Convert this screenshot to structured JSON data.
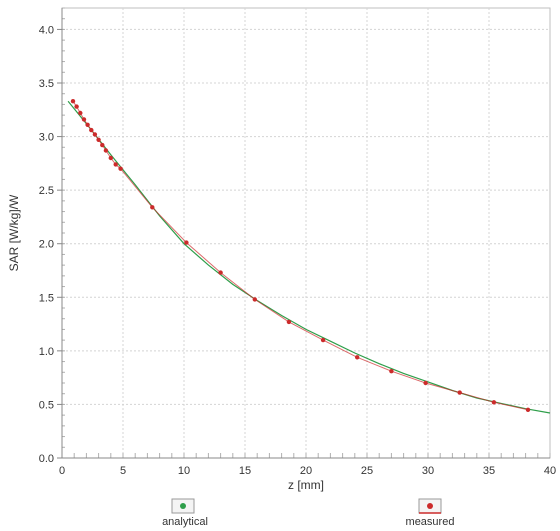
{
  "chart_data": {
    "type": "line",
    "title": "",
    "xlabel": "z [mm]",
    "ylabel": "SAR [W/kg]/W",
    "xlim": [
      0,
      40
    ],
    "ylim": [
      0,
      4.2
    ],
    "x_ticks": [
      "0",
      "5",
      "10",
      "15",
      "20",
      "25",
      "30",
      "35",
      "40"
    ],
    "y_ticks": [
      "0.0",
      "0.5",
      "1.0",
      "1.5",
      "2.0",
      "2.5",
      "3.0",
      "3.5",
      "4.0"
    ],
    "x_tick_values": [
      0,
      5,
      10,
      15,
      20,
      25,
      30,
      35,
      40
    ],
    "y_tick_values": [
      0,
      0.5,
      1.0,
      1.5,
      2.0,
      2.5,
      3.0,
      3.5,
      4.0
    ],
    "grid": true,
    "legend_position": "bottom",
    "series": [
      {
        "name": "analytical",
        "color": "#2e9e4a",
        "style": "line",
        "x": [
          0.5,
          2,
          4,
          6,
          8,
          10,
          12,
          14,
          16,
          18,
          20,
          22,
          24,
          26,
          28,
          30,
          32,
          34,
          36,
          38,
          40
        ],
        "y": [
          3.33,
          3.12,
          2.83,
          2.55,
          2.26,
          2.0,
          1.8,
          1.62,
          1.47,
          1.33,
          1.2,
          1.09,
          0.98,
          0.88,
          0.79,
          0.71,
          0.63,
          0.56,
          0.51,
          0.46,
          0.42
        ]
      },
      {
        "name": "measured",
        "color": "#cc2b2b",
        "style": "markers",
        "x": [
          0.9,
          1.2,
          1.5,
          1.8,
          2.1,
          2.4,
          2.7,
          3.0,
          3.3,
          3.6,
          4.0,
          4.4,
          4.8,
          7.4,
          10.2,
          13.0,
          15.8,
          18.6,
          21.4,
          24.2,
          27.0,
          29.8,
          32.6,
          35.4,
          38.2
        ],
        "y": [
          3.33,
          3.28,
          3.22,
          3.16,
          3.11,
          3.06,
          3.02,
          2.97,
          2.92,
          2.87,
          2.8,
          2.74,
          2.7,
          2.34,
          2.01,
          1.73,
          1.48,
          1.27,
          1.1,
          0.94,
          0.81,
          0.7,
          0.61,
          0.52,
          0.45
        ]
      }
    ]
  },
  "legend": {
    "analytical_label": "analytical",
    "measured_label": "measured"
  }
}
